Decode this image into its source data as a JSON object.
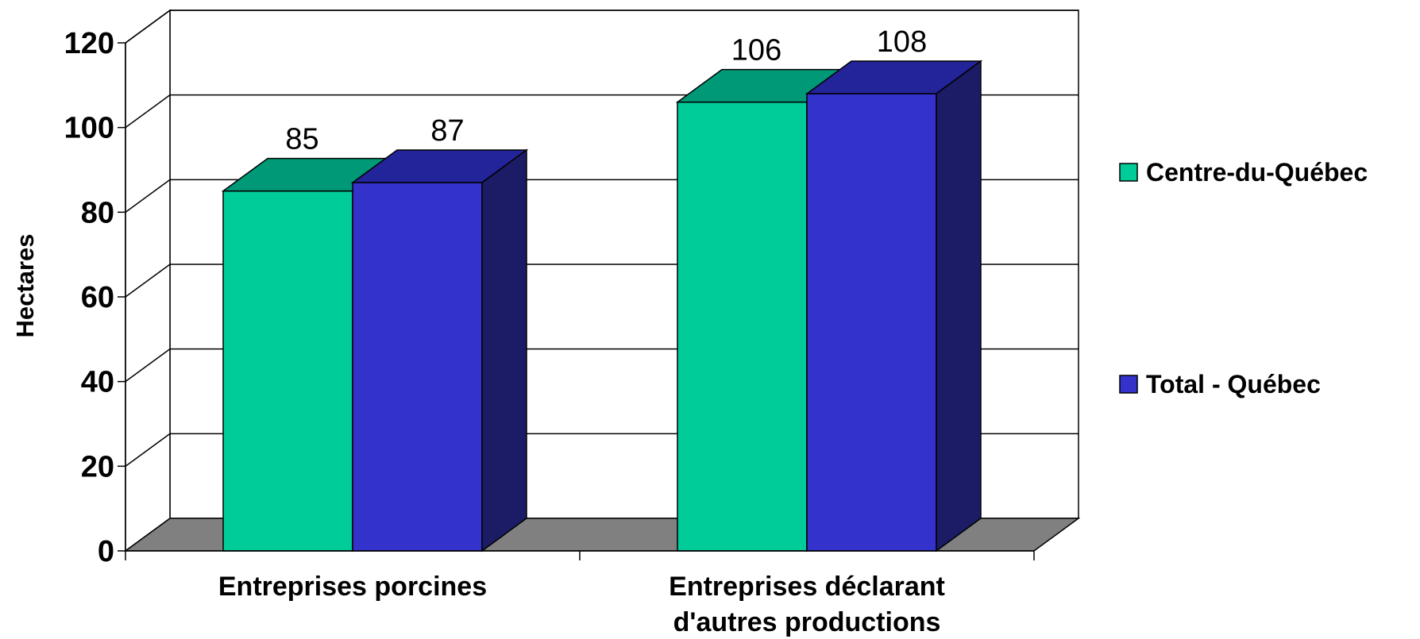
{
  "chart_data": {
    "type": "bar",
    "title": "",
    "xlabel": "",
    "ylabel": "Hectares",
    "ylim": [
      0,
      120
    ],
    "yticks": [
      "0",
      "20",
      "40",
      "60",
      "80",
      "100",
      "120"
    ],
    "categories": [
      "Entreprises porcines",
      "Entreprises déclarant d'autres productions"
    ],
    "series": [
      {
        "name": "Centre-du-Québec",
        "values": [
          85,
          106
        ],
        "labels": [
          "85",
          "106"
        ],
        "color": "#00cc99"
      },
      {
        "name": "Total - Québec",
        "values": [
          87,
          108
        ],
        "labels": [
          "87",
          "108"
        ],
        "color": "#3333cc"
      }
    ],
    "legend_position": "right",
    "grid": true,
    "style": "3d-clustered-column"
  }
}
